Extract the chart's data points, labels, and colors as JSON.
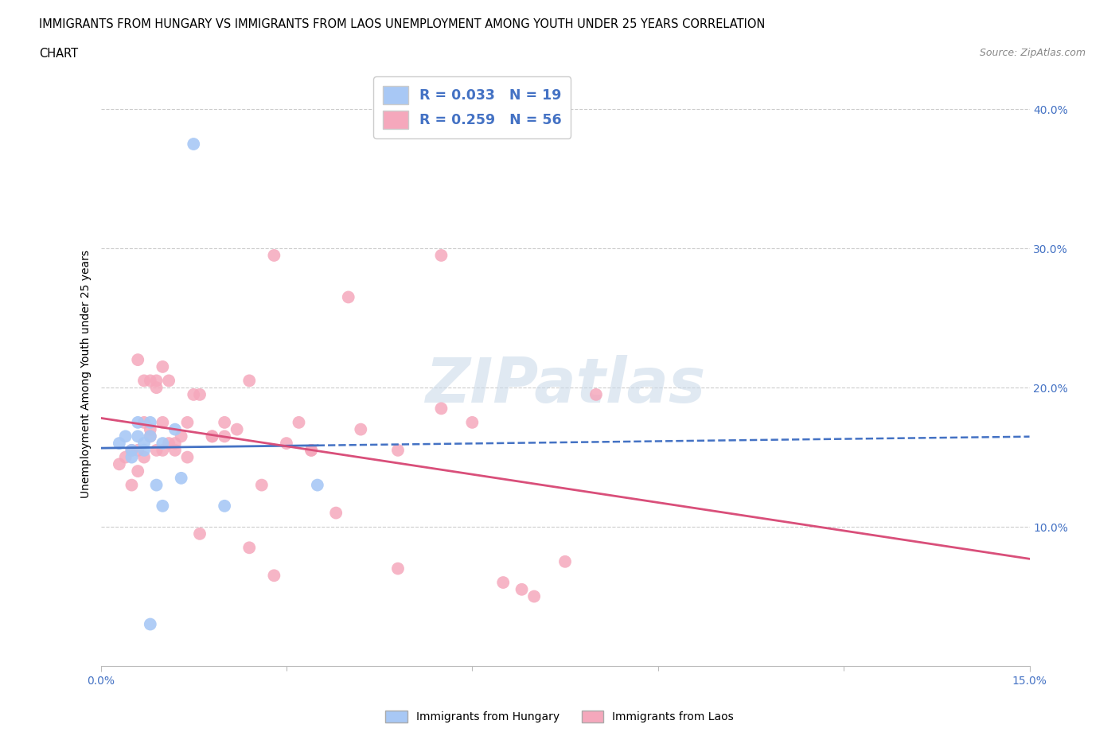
{
  "title_line1": "IMMIGRANTS FROM HUNGARY VS IMMIGRANTS FROM LAOS UNEMPLOYMENT AMONG YOUTH UNDER 25 YEARS CORRELATION",
  "title_line2": "CHART",
  "source": "Source: ZipAtlas.com",
  "ylabel": "Unemployment Among Youth under 25 years",
  "xlim": [
    0.0,
    0.15
  ],
  "ylim": [
    0.0,
    0.42
  ],
  "background_color": "#ffffff",
  "watermark": "ZIPatlas",
  "hungary_color": "#a8c8f5",
  "laos_color": "#f5a8bc",
  "hungary_R": 0.033,
  "hungary_N": 19,
  "laos_R": 0.259,
  "laos_N": 56,
  "hungary_trendline_color": "#4472c4",
  "laos_trendline_color": "#d94f7a",
  "hungary_scatter_x": [
    0.008,
    0.012,
    0.008,
    0.01,
    0.006,
    0.007,
    0.004,
    0.003,
    0.007,
    0.005,
    0.009,
    0.013,
    0.006,
    0.005,
    0.015,
    0.02,
    0.035,
    0.008,
    0.01
  ],
  "hungary_scatter_y": [
    0.165,
    0.17,
    0.175,
    0.16,
    0.165,
    0.16,
    0.165,
    0.16,
    0.155,
    0.15,
    0.13,
    0.135,
    0.175,
    0.155,
    0.375,
    0.115,
    0.13,
    0.03,
    0.115
  ],
  "laos_scatter_x": [
    0.003,
    0.004,
    0.005,
    0.005,
    0.006,
    0.006,
    0.007,
    0.007,
    0.008,
    0.008,
    0.009,
    0.009,
    0.01,
    0.01,
    0.011,
    0.012,
    0.013,
    0.014,
    0.015,
    0.016,
    0.018,
    0.02,
    0.022,
    0.024,
    0.026,
    0.028,
    0.03,
    0.032,
    0.034,
    0.038,
    0.042,
    0.048,
    0.055,
    0.006,
    0.007,
    0.008,
    0.009,
    0.01,
    0.011,
    0.012,
    0.014,
    0.016,
    0.018,
    0.02,
    0.024,
    0.028,
    0.034,
    0.04,
    0.048,
    0.06,
    0.068,
    0.075,
    0.08,
    0.055,
    0.065,
    0.07
  ],
  "laos_scatter_y": [
    0.145,
    0.15,
    0.155,
    0.13,
    0.14,
    0.155,
    0.15,
    0.175,
    0.165,
    0.205,
    0.2,
    0.155,
    0.215,
    0.155,
    0.205,
    0.16,
    0.165,
    0.175,
    0.195,
    0.195,
    0.165,
    0.165,
    0.17,
    0.205,
    0.13,
    0.295,
    0.16,
    0.175,
    0.155,
    0.11,
    0.17,
    0.155,
    0.295,
    0.22,
    0.205,
    0.17,
    0.205,
    0.175,
    0.16,
    0.155,
    0.15,
    0.095,
    0.165,
    0.175,
    0.085,
    0.065,
    0.155,
    0.265,
    0.07,
    0.175,
    0.055,
    0.075,
    0.195,
    0.185,
    0.06,
    0.05
  ]
}
